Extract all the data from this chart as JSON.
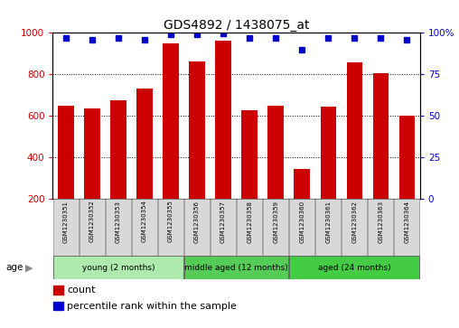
{
  "title": "GDS4892 / 1438075_at",
  "samples": [
    "GSM1230351",
    "GSM1230352",
    "GSM1230353",
    "GSM1230354",
    "GSM1230355",
    "GSM1230356",
    "GSM1230357",
    "GSM1230358",
    "GSM1230359",
    "GSM1230360",
    "GSM1230361",
    "GSM1230362",
    "GSM1230363",
    "GSM1230364"
  ],
  "counts": [
    650,
    635,
    675,
    730,
    950,
    860,
    960,
    625,
    648,
    342,
    645,
    858,
    805,
    600
  ],
  "percentile_ranks": [
    97,
    96,
    97,
    96,
    99,
    99,
    99.5,
    97,
    97,
    90,
    97,
    97,
    97,
    96
  ],
  "ylim_left": [
    200,
    1000
  ],
  "ylim_right": [
    0,
    100
  ],
  "yticks_left": [
    200,
    400,
    600,
    800,
    1000
  ],
  "yticks_right": [
    0,
    25,
    50,
    75,
    100
  ],
  "ytick_right_labels": [
    "0",
    "25",
    "50",
    "75",
    "100%"
  ],
  "bar_color": "#cc0000",
  "dot_color": "#0000cc",
  "bar_width": 0.6,
  "groups": [
    {
      "label": "young (2 months)",
      "start": 0,
      "end": 4,
      "color": "#aeeaae"
    },
    {
      "label": "middle aged (12 months)",
      "start": 5,
      "end": 8,
      "color": "#55cc55"
    },
    {
      "label": "aged (24 months)",
      "start": 9,
      "end": 13,
      "color": "#44cc44"
    }
  ],
  "age_label": "age",
  "legend_count_label": "count",
  "legend_percentile_label": "percentile rank within the sample",
  "tick_bg": "#d8d8d8",
  "plot_bg": "#ffffff"
}
